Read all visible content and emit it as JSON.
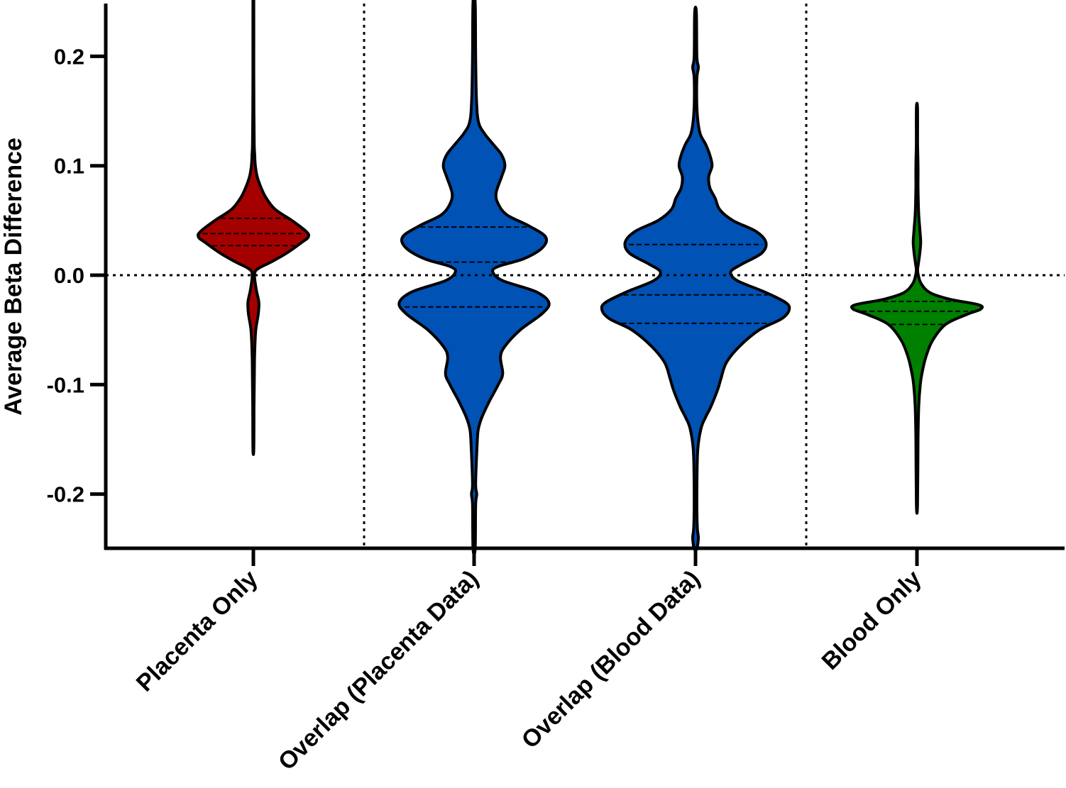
{
  "chart_data": {
    "type": "violin",
    "ylabel": "Average Beta Difference",
    "ylim": [
      -0.25,
      0.25
    ],
    "yticks": [
      "0.2",
      "0.1",
      "0.0",
      "-0.1",
      "-0.2"
    ],
    "ytick_values": [
      0.2,
      0.1,
      0.0,
      -0.1,
      -0.2
    ],
    "reference_line_y": 0.0,
    "categories": [
      "Placenta Only",
      "Overlap (Placenta Data)",
      "Overlap (Blood Data)",
      "Blood Only"
    ],
    "colors": [
      "#a50000",
      "#0052b4",
      "#0052b4",
      "#008000"
    ],
    "series": [
      {
        "category": "Placenta Only",
        "min": -0.159,
        "max": 0.25,
        "median": 0.038,
        "q1": 0.027,
        "q3": 0.052,
        "profile": [
          [
            0.25,
            0.004
          ],
          [
            0.2,
            0.004
          ],
          [
            0.15,
            0.005
          ],
          [
            0.12,
            0.008
          ],
          [
            0.11,
            0.012
          ],
          [
            0.1,
            0.018
          ],
          [
            0.09,
            0.035
          ],
          [
            0.08,
            0.07
          ],
          [
            0.07,
            0.12
          ],
          [
            0.06,
            0.2
          ],
          [
            0.05,
            0.35
          ],
          [
            0.04,
            0.48
          ],
          [
            0.035,
            0.5
          ],
          [
            0.03,
            0.44
          ],
          [
            0.02,
            0.3
          ],
          [
            0.012,
            0.16
          ],
          [
            0.007,
            0.06
          ],
          [
            0.004,
            0.02
          ],
          [
            0.0,
            0.01
          ],
          [
            -0.005,
            0.014
          ],
          [
            -0.015,
            0.03
          ],
          [
            -0.025,
            0.05
          ],
          [
            -0.035,
            0.045
          ],
          [
            -0.05,
            0.022
          ],
          [
            -0.07,
            0.012
          ],
          [
            -0.09,
            0.009
          ],
          [
            -0.12,
            0.006
          ],
          [
            -0.159,
            0.004
          ]
        ]
      },
      {
        "category": "Overlap (Placenta Data)",
        "min": -0.25,
        "max": 0.25,
        "median": 0.012,
        "q1": -0.029,
        "q3": 0.044,
        "profile": [
          [
            0.25,
            0.01
          ],
          [
            0.2,
            0.014
          ],
          [
            0.16,
            0.022
          ],
          [
            0.14,
            0.04
          ],
          [
            0.13,
            0.09
          ],
          [
            0.12,
            0.17
          ],
          [
            0.11,
            0.25
          ],
          [
            0.1,
            0.28
          ],
          [
            0.09,
            0.25
          ],
          [
            0.075,
            0.2
          ],
          [
            0.065,
            0.22
          ],
          [
            0.055,
            0.3
          ],
          [
            0.045,
            0.5
          ],
          [
            0.035,
            0.65
          ],
          [
            0.025,
            0.62
          ],
          [
            0.015,
            0.45
          ],
          [
            0.008,
            0.22
          ],
          [
            0.003,
            0.17
          ],
          [
            -0.005,
            0.26
          ],
          [
            -0.015,
            0.56
          ],
          [
            -0.025,
            0.68
          ],
          [
            -0.035,
            0.62
          ],
          [
            -0.05,
            0.42
          ],
          [
            -0.065,
            0.28
          ],
          [
            -0.075,
            0.24
          ],
          [
            -0.09,
            0.26
          ],
          [
            -0.1,
            0.22
          ],
          [
            -0.115,
            0.14
          ],
          [
            -0.13,
            0.07
          ],
          [
            -0.14,
            0.04
          ],
          [
            -0.15,
            0.03
          ],
          [
            -0.19,
            0.014
          ],
          [
            -0.2,
            0.024
          ],
          [
            -0.21,
            0.014
          ],
          [
            -0.25,
            0.01
          ]
        ]
      },
      {
        "category": "Overlap (Blood Data)",
        "min": -0.25,
        "max": 0.24,
        "median": -0.018,
        "q1": -0.044,
        "q3": 0.028,
        "profile": [
          [
            0.24,
            0.008
          ],
          [
            0.2,
            0.012
          ],
          [
            0.19,
            0.026
          ],
          [
            0.18,
            0.012
          ],
          [
            0.15,
            0.014
          ],
          [
            0.13,
            0.04
          ],
          [
            0.12,
            0.09
          ],
          [
            0.11,
            0.13
          ],
          [
            0.1,
            0.15
          ],
          [
            0.09,
            0.12
          ],
          [
            0.08,
            0.13
          ],
          [
            0.07,
            0.18
          ],
          [
            0.06,
            0.22
          ],
          [
            0.05,
            0.34
          ],
          [
            0.04,
            0.55
          ],
          [
            0.03,
            0.64
          ],
          [
            0.02,
            0.6
          ],
          [
            0.01,
            0.42
          ],
          [
            0.003,
            0.32
          ],
          [
            -0.005,
            0.38
          ],
          [
            -0.015,
            0.62
          ],
          [
            -0.025,
            0.82
          ],
          [
            -0.032,
            0.85
          ],
          [
            -0.04,
            0.78
          ],
          [
            -0.05,
            0.58
          ],
          [
            -0.065,
            0.4
          ],
          [
            -0.08,
            0.28
          ],
          [
            -0.095,
            0.23
          ],
          [
            -0.105,
            0.2
          ],
          [
            -0.12,
            0.14
          ],
          [
            -0.13,
            0.09
          ],
          [
            -0.14,
            0.05
          ],
          [
            -0.16,
            0.02
          ],
          [
            -0.2,
            0.012
          ],
          [
            -0.23,
            0.016
          ],
          [
            -0.24,
            0.026
          ],
          [
            -0.25,
            0.012
          ]
        ]
      },
      {
        "category": "Blood Only",
        "min": -0.21,
        "max": 0.153,
        "median": -0.033,
        "q1": -0.045,
        "q3": -0.024,
        "profile": [
          [
            0.153,
            0.005
          ],
          [
            0.12,
            0.006
          ],
          [
            0.1,
            0.01
          ],
          [
            0.08,
            0.01
          ],
          [
            0.06,
            0.014
          ],
          [
            0.05,
            0.02
          ],
          [
            0.04,
            0.028
          ],
          [
            0.03,
            0.034
          ],
          [
            0.02,
            0.026
          ],
          [
            0.01,
            0.012
          ],
          [
            0.005,
            0.006
          ],
          [
            0.0,
            0.012
          ],
          [
            -0.008,
            0.04
          ],
          [
            -0.016,
            0.12
          ],
          [
            -0.022,
            0.3
          ],
          [
            -0.027,
            0.56
          ],
          [
            -0.031,
            0.58
          ],
          [
            -0.036,
            0.45
          ],
          [
            -0.045,
            0.26
          ],
          [
            -0.06,
            0.14
          ],
          [
            -0.075,
            0.08
          ],
          [
            -0.09,
            0.045
          ],
          [
            -0.1,
            0.03
          ],
          [
            -0.12,
            0.016
          ],
          [
            -0.15,
            0.01
          ],
          [
            -0.21,
            0.005
          ]
        ]
      }
    ]
  }
}
